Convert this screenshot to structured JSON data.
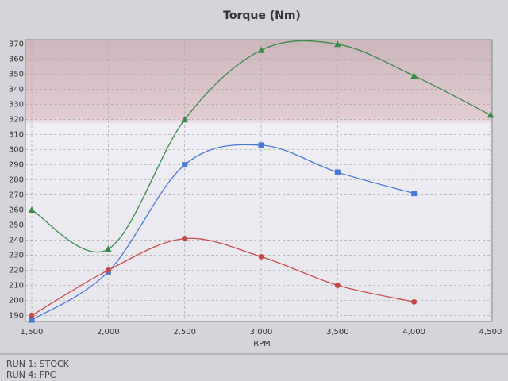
{
  "chart_data": {
    "type": "line",
    "title": "Torque (Nm)",
    "x_label": "RPM",
    "x": [
      1500,
      2000,
      2500,
      3000,
      3500,
      4000,
      4500
    ],
    "series": [
      {
        "color": "#3a8a4a",
        "marker": "triangle",
        "values": [
          260,
          234,
          320,
          366,
          370,
          349,
          323
        ]
      },
      {
        "name": "RUN 4: FPC",
        "color": "#4a78d8",
        "marker": "square",
        "values": [
          187,
          219,
          290,
          303,
          285,
          271,
          null
        ]
      },
      {
        "name": "RUN 1: STOCK",
        "color": "#c84848",
        "marker": "circle",
        "values": [
          190,
          220,
          241,
          229,
          210,
          199,
          null
        ]
      }
    ],
    "xlim": [
      1500,
      4500
    ],
    "xticks": [
      {
        "value": 1500,
        "label": "1,500"
      },
      {
        "value": 2000,
        "label": "2,000"
      },
      {
        "value": 2500,
        "label": "2,500"
      },
      {
        "value": 3000,
        "label": "3,000"
      },
      {
        "value": 3500,
        "label": "3,500"
      },
      {
        "value": 4000,
        "label": "4,000"
      },
      {
        "value": 4500,
        "label": "4,500"
      }
    ],
    "ylim": [
      186,
      373
    ],
    "yticks": [
      190,
      200,
      210,
      220,
      230,
      240,
      250,
      260,
      270,
      280,
      290,
      300,
      310,
      320,
      330,
      340,
      350,
      360,
      370
    ],
    "grid": true,
    "legend_order": [
      2,
      1
    ]
  }
}
